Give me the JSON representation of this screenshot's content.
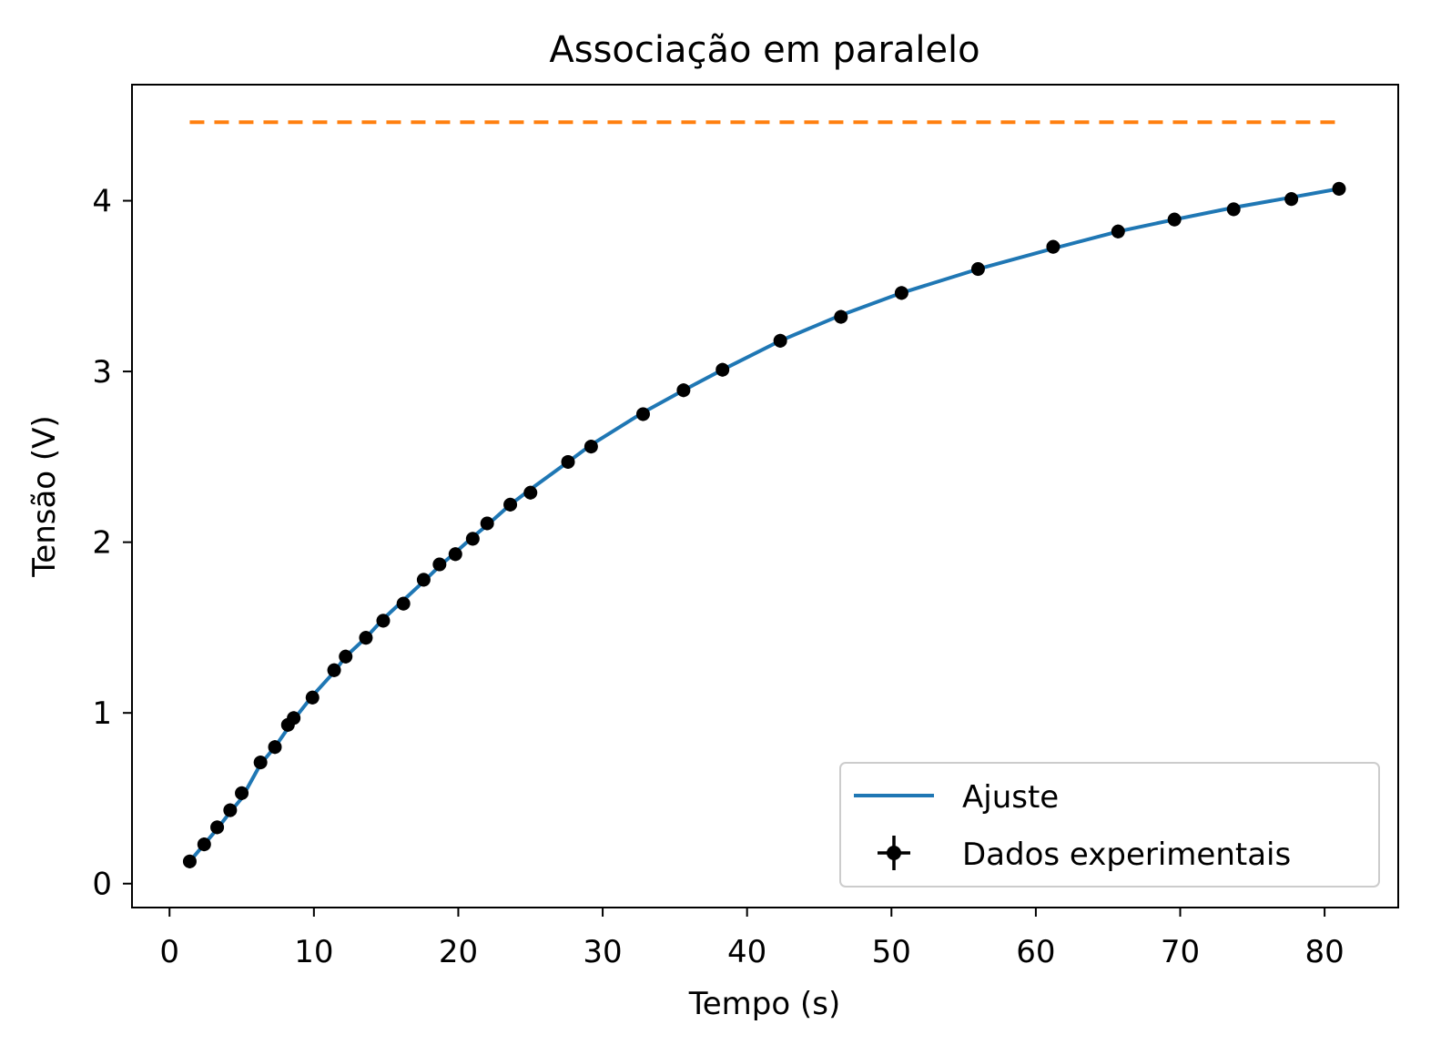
{
  "chart_data": {
    "type": "scatter",
    "title": "Associação em paralelo",
    "xlabel": "Tempo (s)",
    "ylabel": "Tensão (V)",
    "xlim": [
      -2.6,
      85.1
    ],
    "ylim": [
      -0.14,
      4.68
    ],
    "xticks": [
      0,
      10,
      20,
      30,
      40,
      50,
      60,
      70,
      80
    ],
    "yticks": [
      0,
      1,
      2,
      3,
      4
    ],
    "grid": false,
    "legend_position": "lower-right",
    "series": [
      {
        "name": "Ajuste",
        "kind": "line",
        "color": "#1f77b4",
        "x": [
          1.4,
          2.4,
          3.3,
          4.2,
          5.0,
          6.3,
          7.3,
          8.2,
          8.6,
          9.9,
          11.4,
          12.2,
          13.6,
          14.8,
          16.2,
          17.6,
          18.7,
          19.8,
          21.0,
          22.0,
          23.6,
          25.0,
          27.6,
          29.2,
          32.8,
          35.6,
          38.3,
          42.3,
          46.5,
          50.7,
          56.0,
          61.2,
          65.7,
          69.6,
          73.7,
          77.7,
          81.0
        ],
        "y": [
          0.13,
          0.23,
          0.32,
          0.42,
          0.5,
          0.7,
          0.8,
          0.91,
          0.96,
          1.1,
          1.24,
          1.33,
          1.44,
          1.55,
          1.66,
          1.77,
          1.86,
          1.94,
          2.03,
          2.1,
          2.22,
          2.31,
          2.47,
          2.57,
          2.76,
          2.89,
          3.01,
          3.18,
          3.33,
          3.46,
          3.6,
          3.72,
          3.82,
          3.89,
          3.96,
          4.02,
          4.07
        ]
      },
      {
        "name": "Dados experimentais",
        "kind": "errorbar",
        "color": "#000000",
        "x": [
          1.4,
          2.4,
          3.3,
          4.2,
          5.0,
          6.3,
          7.3,
          8.2,
          8.6,
          9.9,
          11.4,
          12.2,
          13.6,
          14.8,
          16.2,
          17.6,
          18.7,
          19.8,
          21.0,
          22.0,
          23.6,
          25.0,
          27.6,
          29.2,
          32.8,
          35.6,
          38.3,
          42.3,
          46.5,
          50.7,
          56.0,
          61.2,
          65.7,
          69.6,
          73.7,
          77.7,
          81.0
        ],
        "y": [
          0.13,
          0.23,
          0.33,
          0.43,
          0.53,
          0.71,
          0.8,
          0.93,
          0.97,
          1.09,
          1.25,
          1.33,
          1.44,
          1.54,
          1.64,
          1.78,
          1.87,
          1.93,
          2.02,
          2.11,
          2.22,
          2.29,
          2.47,
          2.56,
          2.75,
          2.89,
          3.01,
          3.18,
          3.32,
          3.46,
          3.6,
          3.73,
          3.82,
          3.89,
          3.95,
          4.01,
          4.07
        ],
        "yerr": 0.04
      },
      {
        "name": "",
        "kind": "hline",
        "color": "#ff7f0e",
        "style": "dashed",
        "y": 4.46,
        "x_range": [
          1.4,
          81.0
        ]
      }
    ]
  }
}
